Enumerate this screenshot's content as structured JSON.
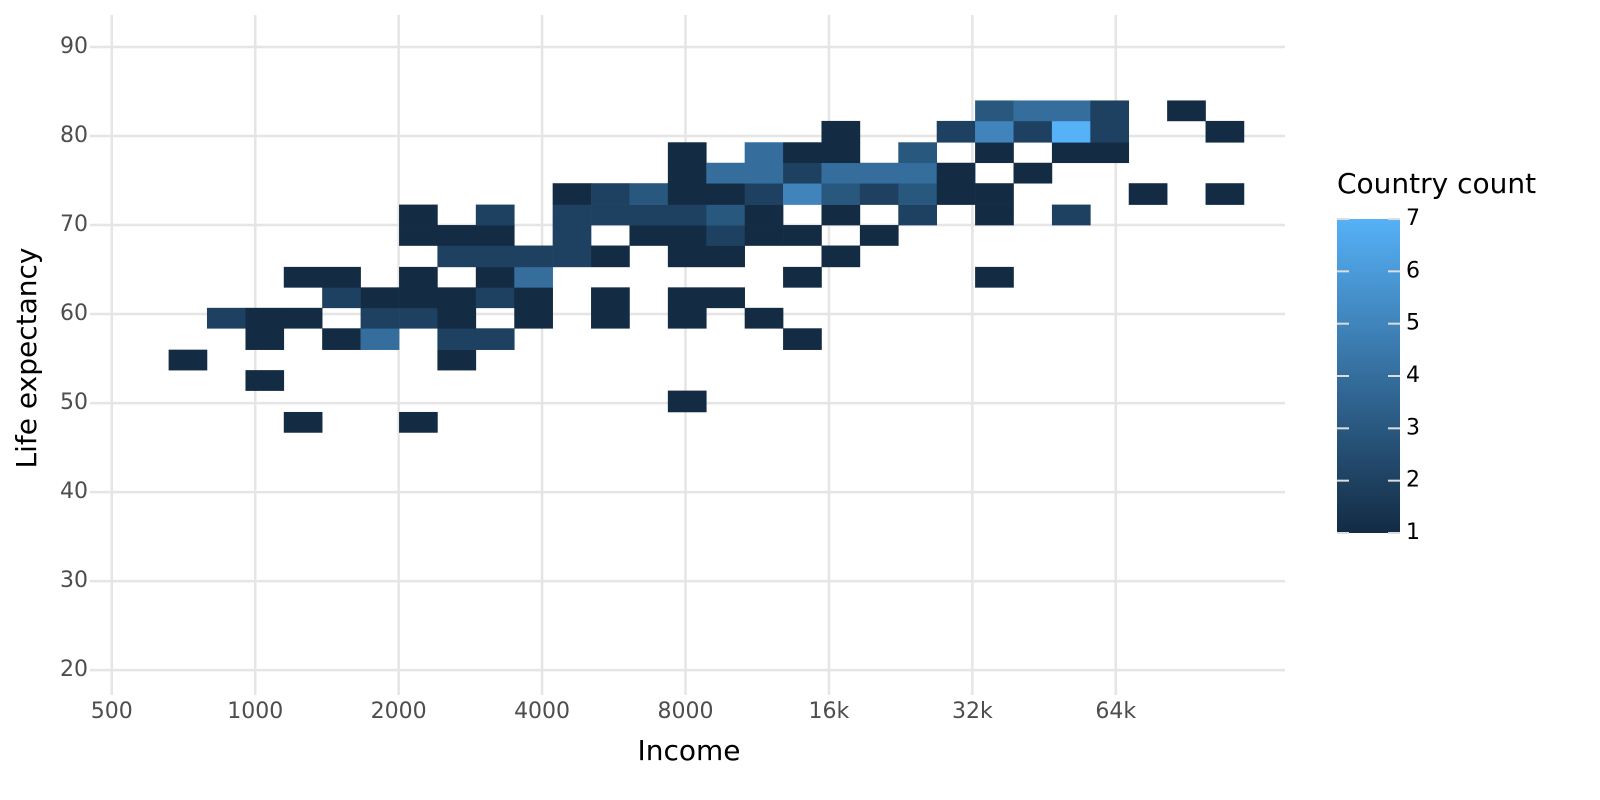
{
  "chart_data": {
    "type": "bin2d",
    "x_label": "Income",
    "y_label": "Life expectancy",
    "x_scale": "log",
    "grid": true,
    "xlim": [
      450,
      145000
    ],
    "ylim": [
      17.2,
      93.6
    ],
    "xticks": [
      500,
      1000,
      2000,
      4000,
      8000,
      {
        "value": 16000,
        "label": "16k"
      },
      {
        "value": 32000,
        "label": "32k"
      },
      {
        "value": 64000,
        "label": "64k"
      }
    ],
    "yticks": [
      20,
      30,
      40,
      50,
      60,
      70,
      80,
      90
    ],
    "xbins": [
      658,
      792,
      954,
      1148,
      1382,
      1664,
      2004,
      2412,
      2904,
      3497,
      4210,
      5068,
      6102,
      7346,
      8845,
      10649,
      12820,
      15435,
      18583,
      22374,
      26937,
      32430,
      39045,
      47008,
      56595,
      68137,
      82034,
      98764,
      118906,
      143156
    ],
    "ybins": [
      46.7,
      49.0,
      51.4,
      53.7,
      56.0,
      58.4,
      60.7,
      63.0,
      65.3,
      67.7,
      70.0,
      72.3,
      74.7,
      77.0,
      79.3,
      81.7,
      84.0
    ],
    "counts": [
      [
        null,
        null,
        null,
        1,
        null,
        null,
        1,
        null,
        null,
        null,
        null,
        null,
        null,
        null,
        null,
        null,
        null,
        null,
        null,
        null,
        null,
        null,
        null,
        null,
        null,
        null,
        null,
        null,
        null
      ],
      [
        null,
        null,
        null,
        null,
        null,
        null,
        null,
        null,
        null,
        null,
        null,
        null,
        null,
        1,
        null,
        null,
        null,
        null,
        null,
        null,
        null,
        null,
        null,
        null,
        null,
        null,
        null,
        null,
        null
      ],
      [
        null,
        null,
        1,
        null,
        null,
        null,
        null,
        null,
        null,
        null,
        null,
        null,
        null,
        null,
        null,
        null,
        null,
        null,
        null,
        null,
        null,
        null,
        null,
        null,
        null,
        null,
        null,
        null,
        null
      ],
      [
        1,
        null,
        null,
        null,
        null,
        null,
        null,
        1,
        null,
        null,
        null,
        null,
        null,
        null,
        null,
        null,
        null,
        null,
        null,
        null,
        null,
        null,
        null,
        null,
        null,
        null,
        null,
        null,
        null
      ],
      [
        null,
        null,
        1,
        null,
        1,
        4,
        null,
        2,
        2,
        null,
        null,
        null,
        null,
        null,
        null,
        null,
        1,
        null,
        null,
        null,
        null,
        null,
        null,
        null,
        null,
        null,
        null,
        null,
        null
      ],
      [
        null,
        2,
        1,
        1,
        null,
        2,
        2,
        1,
        null,
        1,
        null,
        1,
        null,
        1,
        null,
        1,
        null,
        null,
        null,
        null,
        null,
        null,
        null,
        null,
        null,
        null,
        null,
        null,
        null
      ],
      [
        null,
        null,
        null,
        null,
        2,
        1,
        1,
        1,
        2,
        1,
        null,
        1,
        null,
        1,
        1,
        null,
        null,
        null,
        null,
        null,
        null,
        null,
        null,
        null,
        null,
        null,
        null,
        null,
        null
      ],
      [
        null,
        null,
        null,
        1,
        1,
        null,
        1,
        null,
        1,
        4,
        null,
        null,
        null,
        null,
        null,
        null,
        1,
        null,
        null,
        null,
        null,
        1,
        null,
        null,
        null,
        null,
        null,
        null,
        null
      ],
      [
        null,
        null,
        null,
        null,
        null,
        null,
        null,
        2,
        2,
        2,
        2,
        1,
        null,
        1,
        1,
        null,
        null,
        1,
        null,
        null,
        null,
        null,
        null,
        null,
        null,
        null,
        null,
        null,
        null
      ],
      [
        null,
        null,
        null,
        null,
        null,
        null,
        1,
        1,
        1,
        null,
        2,
        null,
        1,
        1,
        2,
        1,
        1,
        null,
        1,
        null,
        null,
        null,
        null,
        null,
        null,
        null,
        null,
        null,
        null
      ],
      [
        null,
        null,
        null,
        null,
        null,
        null,
        1,
        null,
        2,
        null,
        2,
        2,
        2,
        2,
        3,
        1,
        null,
        1,
        null,
        2,
        null,
        1,
        null,
        2,
        null,
        null,
        null,
        null,
        null
      ],
      [
        null,
        null,
        null,
        null,
        null,
        null,
        null,
        null,
        null,
        null,
        1,
        2,
        3,
        1,
        1,
        2,
        5,
        3,
        2,
        3,
        1,
        1,
        null,
        null,
        null,
        1,
        null,
        1,
        null
      ],
      [
        null,
        null,
        null,
        null,
        null,
        null,
        null,
        null,
        null,
        null,
        null,
        null,
        null,
        1,
        4,
        4,
        2,
        4,
        4,
        4,
        1,
        null,
        1,
        null,
        null,
        null,
        null,
        null,
        null
      ],
      [
        null,
        null,
        null,
        null,
        null,
        null,
        null,
        null,
        null,
        null,
        null,
        null,
        null,
        1,
        null,
        4,
        1,
        1,
        null,
        3,
        null,
        1,
        null,
        1,
        1,
        null,
        null,
        null,
        null
      ],
      [
        null,
        null,
        null,
        null,
        null,
        null,
        null,
        null,
        null,
        null,
        null,
        null,
        null,
        null,
        null,
        null,
        null,
        1,
        null,
        null,
        2,
        5,
        2,
        7,
        2,
        null,
        null,
        1,
        null
      ],
      [
        null,
        null,
        null,
        null,
        null,
        null,
        null,
        null,
        null,
        null,
        null,
        null,
        null,
        null,
        null,
        null,
        null,
        null,
        null,
        null,
        null,
        3,
        4,
        4,
        2,
        null,
        1,
        null,
        null
      ]
    ],
    "legend_title": "Country count",
    "fill_low": "#132b43",
    "fill_high": "#56b1f7",
    "fill_limits": [
      1,
      7
    ],
    "fill_breaks": [
      1,
      2,
      3,
      4,
      5,
      6,
      7
    ]
  }
}
